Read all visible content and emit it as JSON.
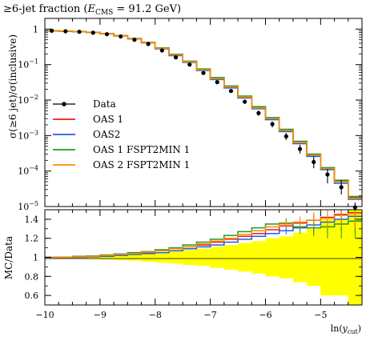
{
  "chart_data": [
    {
      "type": "line",
      "title": "≥6-jet fraction (E_CMS = 91.2 GeV)",
      "title_parts": {
        "pre": "≥6-jet fraction (",
        "E": "E",
        "sub": "CMS",
        "post": " = 91.2 GeV)"
      },
      "xlabel": "ln(y_cut)",
      "xlabel_parts": {
        "pre": "ln(",
        "y": "y",
        "sub": "cut",
        "post": ")"
      },
      "ylabel": "σ(≥6 jet)/σ(inclusive)",
      "y_scale": "log",
      "xlim": [
        -10,
        -4.25
      ],
      "ylim": [
        1e-05,
        2
      ],
      "y_ticks": [
        {
          "v": 1,
          "label": "1",
          "exp": ""
        },
        {
          "v": 0.1,
          "label": "10",
          "exp": "−1"
        },
        {
          "v": 0.01,
          "label": "10",
          "exp": "−2"
        },
        {
          "v": 0.001,
          "label": "10",
          "exp": "−3"
        },
        {
          "v": 0.0001,
          "label": "10",
          "exp": "−4"
        },
        {
          "v": 1e-05,
          "label": "10",
          "exp": "−5"
        }
      ],
      "legend_position": "left-middle",
      "bin_edges": [
        -10,
        -9.75,
        -9.5,
        -9.25,
        -9,
        -8.75,
        -8.5,
        -8.25,
        -8,
        -7.75,
        -7.5,
        -7.25,
        -7,
        -6.75,
        -6.5,
        -6.25,
        -6,
        -5.75,
        -5.5,
        -5.25,
        -5,
        -4.75,
        -4.5,
        -4.25
      ],
      "data": {
        "name": "Data",
        "x": [
          -9.875,
          -9.625,
          -9.375,
          -9.125,
          -8.875,
          -8.625,
          -8.375,
          -8.125,
          -7.875,
          -7.625,
          -7.375,
          -7.125,
          -6.875,
          -6.625,
          -6.375,
          -6.125,
          -5.875,
          -5.625,
          -5.375,
          -5.125,
          -4.875,
          -4.625,
          -4.375
        ],
        "y": [
          0.9,
          0.87,
          0.84,
          0.79,
          0.72,
          0.62,
          0.5,
          0.38,
          0.25,
          0.16,
          0.1,
          0.058,
          0.032,
          0.018,
          0.009,
          0.0043,
          0.0021,
          0.00095,
          0.00042,
          0.00018,
          8e-05,
          3.5e-05,
          9.5e-06
        ],
        "err_lo": [
          0.88,
          0.85,
          0.82,
          0.77,
          0.7,
          0.6,
          0.48,
          0.365,
          0.235,
          0.15,
          0.092,
          0.053,
          0.029,
          0.016,
          0.0078,
          0.0036,
          0.0017,
          0.00075,
          0.00031,
          0.00012,
          4.5e-05,
          2.2e-05,
          7.5e-06
        ],
        "err_hi": [
          0.92,
          0.89,
          0.86,
          0.81,
          0.74,
          0.64,
          0.52,
          0.395,
          0.265,
          0.17,
          0.108,
          0.063,
          0.035,
          0.02,
          0.0102,
          0.005,
          0.0025,
          0.00118,
          0.00055,
          0.00026,
          0.000115,
          5.5e-05,
          1.3e-05
        ]
      },
      "series": [
        {
          "name": "OAS 1",
          "color": "#ee1c1c",
          "values": [
            0.9,
            0.875,
            0.85,
            0.81,
            0.74,
            0.65,
            0.54,
            0.42,
            0.29,
            0.19,
            0.12,
            0.072,
            0.041,
            0.024,
            0.0125,
            0.0062,
            0.0031,
            0.00145,
            0.00066,
            0.00029,
            0.00012,
            5.2e-05,
            1.8e-05
          ]
        },
        {
          "name": "OAS2",
          "color": "#1f5ee8",
          "values": [
            0.9,
            0.872,
            0.845,
            0.805,
            0.735,
            0.64,
            0.53,
            0.41,
            0.28,
            0.18,
            0.115,
            0.068,
            0.038,
            0.022,
            0.0115,
            0.0057,
            0.0028,
            0.0013,
            0.00059,
            0.00026,
            0.00011,
            4.5e-05,
            1.6e-05
          ]
        },
        {
          "name": "OAS 1 FSPT2MIN 1",
          "color": "#1f9a1f",
          "values": [
            0.9,
            0.876,
            0.852,
            0.815,
            0.745,
            0.655,
            0.545,
            0.425,
            0.295,
            0.195,
            0.125,
            0.075,
            0.043,
            0.025,
            0.013,
            0.0065,
            0.0032,
            0.0015,
            0.00069,
            0.0003,
            0.000125,
            5.5e-05,
            1.9e-05
          ]
        },
        {
          "name": "OAS 2 FSPT2MIN 1",
          "color": "#ff8c00",
          "values": [
            0.9,
            0.874,
            0.849,
            0.81,
            0.74,
            0.648,
            0.54,
            0.418,
            0.288,
            0.188,
            0.12,
            0.071,
            0.04,
            0.0235,
            0.0122,
            0.006,
            0.003,
            0.0014,
            0.00064,
            0.00028,
            0.000118,
            5e-05,
            1.7e-05
          ]
        }
      ]
    },
    {
      "type": "line",
      "ylabel": "MC/Data",
      "xlabel": "ln(y_cut)",
      "xlim": [
        -10,
        -4.25
      ],
      "ylim": [
        0.5,
        1.5
      ],
      "x_ticks": [
        -10,
        -9,
        -8,
        -7,
        -6,
        -5
      ],
      "y_ticks": [
        0.6,
        0.8,
        1,
        1.2,
        1.4
      ],
      "band": {
        "color": "#ffff00",
        "lo": [
          0.995,
          0.99,
          0.985,
          0.98,
          0.975,
          0.97,
          0.965,
          0.955,
          0.945,
          0.935,
          0.92,
          0.91,
          0.89,
          0.87,
          0.85,
          0.83,
          0.8,
          0.78,
          0.74,
          0.7,
          0.6,
          0.6,
          0.5
        ],
        "hi": [
          1.005,
          1.01,
          1.015,
          1.02,
          1.025,
          1.03,
          1.035,
          1.045,
          1.055,
          1.065,
          1.08,
          1.09,
          1.11,
          1.13,
          1.15,
          1.17,
          1.2,
          1.22,
          1.26,
          1.3,
          1.4,
          1.4,
          1.5
        ]
      },
      "ratios": [
        {
          "name": "OAS 1",
          "color": "#ee1c1c",
          "values": [
            1.0,
            1.0,
            1.005,
            1.01,
            1.02,
            1.03,
            1.04,
            1.05,
            1.07,
            1.09,
            1.11,
            1.13,
            1.16,
            1.19,
            1.22,
            1.25,
            1.29,
            1.33,
            1.36,
            1.39,
            1.42,
            1.45,
            1.47
          ],
          "err": [
            0,
            0,
            0,
            0,
            0,
            0,
            0,
            0,
            0,
            0,
            0,
            0,
            0,
            0,
            0,
            0,
            0,
            0.04,
            0.06,
            0.08,
            0.1,
            0.12,
            0.15
          ]
        },
        {
          "name": "OAS2",
          "color": "#1f5ee8",
          "values": [
            1.0,
            1.0,
            1.0,
            1.005,
            1.01,
            1.02,
            1.03,
            1.04,
            1.05,
            1.07,
            1.09,
            1.11,
            1.13,
            1.16,
            1.19,
            1.22,
            1.25,
            1.28,
            1.31,
            1.34,
            1.37,
            1.4,
            1.43
          ],
          "err": [
            0,
            0,
            0,
            0,
            0,
            0,
            0,
            0,
            0,
            0,
            0,
            0,
            0,
            0,
            0,
            0,
            0,
            0.04,
            0.06,
            0.08,
            0.1,
            0.12,
            0.15
          ]
        },
        {
          "name": "OAS 1 FSPT2MIN 1",
          "color": "#1f9a1f",
          "values": [
            1.0,
            1.0,
            1.01,
            1.015,
            1.025,
            1.035,
            1.05,
            1.06,
            1.08,
            1.1,
            1.13,
            1.16,
            1.19,
            1.23,
            1.27,
            1.31,
            1.35,
            1.36,
            1.32,
            1.31,
            1.32,
            1.35,
            1.38
          ],
          "err": [
            0,
            0,
            0,
            0,
            0,
            0,
            0,
            0,
            0,
            0,
            0,
            0,
            0,
            0,
            0,
            0,
            0,
            0.05,
            0.07,
            0.09,
            0.12,
            0.15,
            0.18
          ]
        },
        {
          "name": "OAS 2 FSPT2MIN 1",
          "color": "#ff8c00",
          "values": [
            1.0,
            1.0,
            1.005,
            1.01,
            1.02,
            1.03,
            1.04,
            1.055,
            1.07,
            1.09,
            1.11,
            1.14,
            1.17,
            1.2,
            1.24,
            1.28,
            1.32,
            1.35,
            1.37,
            1.39,
            1.41,
            1.44,
            1.46
          ],
          "err": [
            0,
            0,
            0,
            0,
            0,
            0,
            0,
            0,
            0,
            0,
            0,
            0,
            0,
            0,
            0,
            0,
            0,
            0.04,
            0.06,
            0.08,
            0.1,
            0.12,
            0.15
          ]
        }
      ]
    }
  ]
}
